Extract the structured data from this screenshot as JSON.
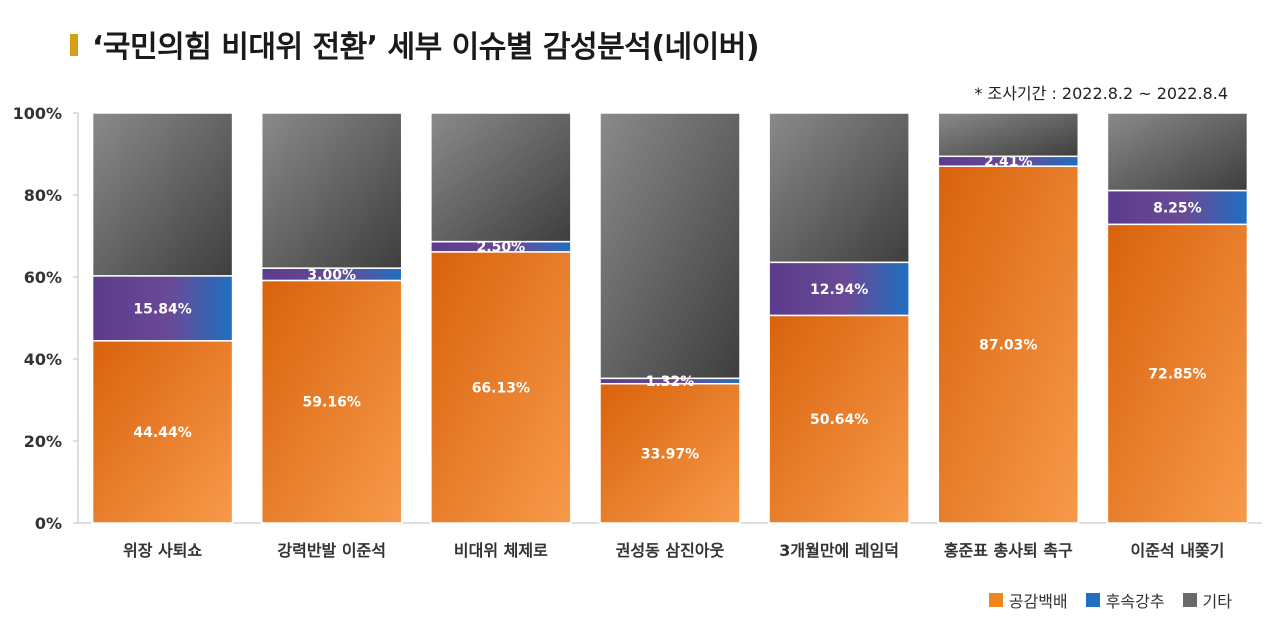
{
  "header": {
    "title": "‘국민의힘 비대위 전환’ 세부 이슈별 감성분석(네이버)",
    "period": "* 조사기간 : 2022.8.2 ~ 2022.8.4"
  },
  "colors": {
    "positive": "#f0841f",
    "progress": "#1f6fc0",
    "progress_mix": "#5b3c8c",
    "other": "#6a6a6a",
    "title_accent": "#d4a017"
  },
  "chart_data": {
    "type": "bar",
    "stacked": true,
    "normalized": true,
    "categories": [
      "위장 사퇴쇼",
      "강력반발 이준석",
      "비대위 체제로",
      "권성동 삼진아웃",
      "3개월만에 레임덕",
      "홍준표 총사퇴 촉구",
      "이준석 내쫒기"
    ],
    "series": [
      {
        "name": "공감백배",
        "values": [
          44.44,
          59.16,
          66.13,
          33.97,
          50.64,
          87.03,
          72.85
        ]
      },
      {
        "name": "후속강추",
        "values": [
          15.84,
          3.0,
          2.5,
          1.32,
          12.94,
          2.41,
          8.25
        ]
      },
      {
        "name": "기타",
        "values": [
          39.72,
          37.84,
          31.37,
          64.71,
          36.42,
          10.56,
          18.9
        ]
      }
    ],
    "data_labels": {
      "공감백배": [
        "44.44%",
        "59.16%",
        "66.13%",
        "33.97%",
        "50.64%",
        "87.03%",
        "72.85%"
      ],
      "후속강추": [
        "15.84%",
        "3.00%",
        "2.50%",
        "1.32%",
        "12.94%",
        "2.41%",
        "8.25%"
      ]
    },
    "yticks": [
      "0%",
      "20%",
      "40%",
      "60%",
      "80%",
      "100%"
    ],
    "ylim": [
      0,
      100
    ],
    "grid": false,
    "legend": "bottom-right"
  }
}
